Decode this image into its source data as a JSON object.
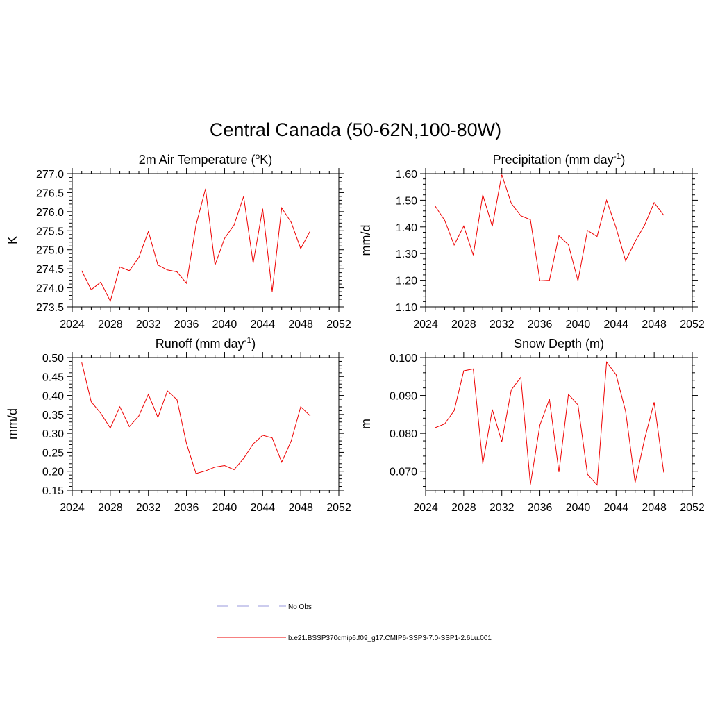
{
  "figure": {
    "title": "Central Canada (50-62N,100-80W)"
  },
  "legend": {
    "items": [
      {
        "label": "No Obs",
        "color": "#9999dd",
        "dashed": true
      },
      {
        "label": "b.e21.BSSP370cmip6.f09_g17.CMIP6-SSP3-7.0-SSP1-2.6Lu.001",
        "color": "#ee0000",
        "dashed": false
      }
    ]
  },
  "chart_data": [
    {
      "type": "line",
      "title": "2m Air Temperature (",
      "title_sup": "o",
      "title_after": "K)",
      "ylabel": "K",
      "xlim": [
        2024,
        2052
      ],
      "ylim": [
        273.5,
        277.0
      ],
      "xticks": [
        2024,
        2028,
        2032,
        2036,
        2040,
        2044,
        2048,
        2052
      ],
      "yticks": [
        273.5,
        274.0,
        274.5,
        275.0,
        275.5,
        276.0,
        276.5,
        277.0
      ],
      "ytick_labels": [
        "273.5",
        "274.0",
        "274.5",
        "275.0",
        "275.5",
        "276.0",
        "276.5",
        "277.0"
      ],
      "x": [
        2025,
        2026,
        2027,
        2028,
        2029,
        2030,
        2031,
        2032,
        2033,
        2034,
        2035,
        2036,
        2037,
        2038,
        2039,
        2040,
        2041,
        2042,
        2043,
        2044,
        2045,
        2046,
        2047,
        2048,
        2049
      ],
      "series": [
        {
          "color": "#ee0000",
          "values": [
            274.45,
            273.95,
            274.15,
            273.65,
            274.55,
            274.45,
            274.8,
            275.48,
            274.6,
            274.47,
            274.42,
            274.12,
            275.65,
            276.6,
            274.6,
            275.3,
            275.65,
            276.4,
            274.65,
            276.08,
            273.9,
            276.1,
            275.72,
            275.03,
            275.5
          ]
        }
      ]
    },
    {
      "type": "line",
      "title": "Precipitation (mm day",
      "title_sup": "-1",
      "title_after": ")",
      "ylabel": "mm/d",
      "xlim": [
        2024,
        2052
      ],
      "ylim": [
        1.1,
        1.6
      ],
      "xticks": [
        2024,
        2028,
        2032,
        2036,
        2040,
        2044,
        2048,
        2052
      ],
      "yticks": [
        1.1,
        1.2,
        1.3,
        1.4,
        1.5,
        1.6
      ],
      "ytick_labels": [
        "1.10",
        "1.20",
        "1.30",
        "1.40",
        "1.50",
        "1.60"
      ],
      "x": [
        2025,
        2026,
        2027,
        2028,
        2029,
        2030,
        2031,
        2032,
        2033,
        2034,
        2035,
        2036,
        2037,
        2038,
        2039,
        2040,
        2041,
        2042,
        2043,
        2044,
        2045,
        2046,
        2047,
        2048,
        2049
      ],
      "series": [
        {
          "color": "#ee0000",
          "values": [
            1.478,
            1.425,
            1.332,
            1.403,
            1.294,
            1.52,
            1.402,
            1.596,
            1.488,
            1.442,
            1.427,
            1.198,
            1.2,
            1.367,
            1.333,
            1.198,
            1.387,
            1.364,
            1.5,
            1.397,
            1.273,
            1.345,
            1.407,
            1.491,
            1.444
          ]
        }
      ]
    },
    {
      "type": "line",
      "title": "Runoff (mm day",
      "title_sup": "-1",
      "title_after": ")",
      "ylabel": "mm/d",
      "xlim": [
        2024,
        2052
      ],
      "ylim": [
        0.15,
        0.5
      ],
      "xticks": [
        2024,
        2028,
        2032,
        2036,
        2040,
        2044,
        2048,
        2052
      ],
      "yticks": [
        0.15,
        0.2,
        0.25,
        0.3,
        0.35,
        0.4,
        0.45,
        0.5
      ],
      "ytick_labels": [
        "0.15",
        "0.20",
        "0.25",
        "0.30",
        "0.35",
        "0.40",
        "0.45",
        "0.50"
      ],
      "x": [
        2025,
        2026,
        2027,
        2028,
        2029,
        2030,
        2031,
        2032,
        2033,
        2034,
        2035,
        2036,
        2037,
        2038,
        2039,
        2040,
        2041,
        2042,
        2043,
        2044,
        2045,
        2046,
        2047,
        2048,
        2049
      ],
      "series": [
        {
          "color": "#ee0000",
          "values": [
            0.487,
            0.383,
            0.353,
            0.314,
            0.37,
            0.318,
            0.346,
            0.403,
            0.342,
            0.412,
            0.389,
            0.273,
            0.194,
            0.201,
            0.211,
            0.215,
            0.204,
            0.234,
            0.272,
            0.295,
            0.288,
            0.224,
            0.28,
            0.37,
            0.346
          ]
        }
      ]
    },
    {
      "type": "line",
      "title": "Snow Depth (m)",
      "title_sup": "",
      "title_after": "",
      "ylabel": "m",
      "xlim": [
        2024,
        2052
      ],
      "ylim": [
        0.065,
        0.1
      ],
      "xticks": [
        2024,
        2028,
        2032,
        2036,
        2040,
        2044,
        2048,
        2052
      ],
      "yticks": [
        0.07,
        0.08,
        0.09,
        0.1
      ],
      "ytick_labels": [
        "0.070",
        "0.080",
        "0.090",
        "0.100"
      ],
      "x": [
        2025,
        2026,
        2027,
        2028,
        2029,
        2030,
        2031,
        2032,
        2033,
        2034,
        2035,
        2036,
        2037,
        2038,
        2039,
        2040,
        2041,
        2042,
        2043,
        2044,
        2045,
        2046,
        2047,
        2048,
        2049
      ],
      "series": [
        {
          "color": "#ee0000",
          "values": [
            0.0815,
            0.0825,
            0.086,
            0.0965,
            0.097,
            0.072,
            0.0863,
            0.0778,
            0.0915,
            0.0948,
            0.0665,
            0.0822,
            0.089,
            0.0698,
            0.0903,
            0.0875,
            0.0692,
            0.0664,
            0.0988,
            0.0955,
            0.0858,
            0.067,
            0.0785,
            0.0882,
            0.0697
          ]
        }
      ]
    }
  ]
}
